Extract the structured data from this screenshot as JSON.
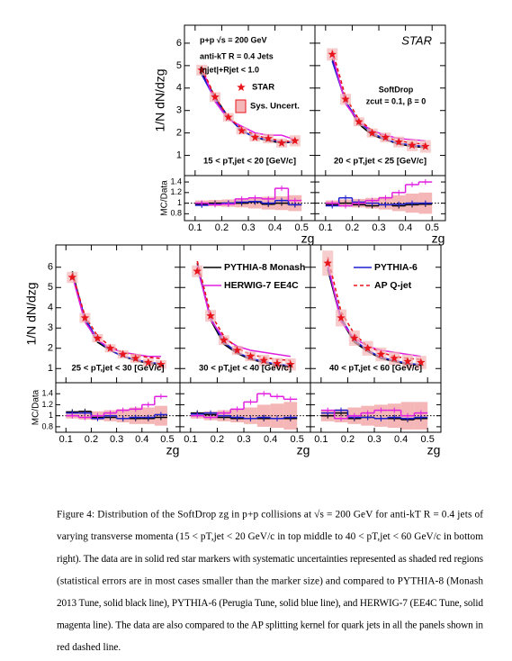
{
  "chart_data": [
    {
      "type": "line",
      "ylabel": "1/N dN/dzg",
      "xlabel": "zg",
      "pt_label": "15 < pT,jet < 20 [GeV/c]",
      "annotations": [
        "p+p  √s = 200 GeV",
        "anti-kT R = 0.4 Jets",
        "|ηjet|+Rjet < 1.0"
      ],
      "x": [
        0.125,
        0.175,
        0.225,
        0.275,
        0.325,
        0.375,
        0.425,
        0.475
      ],
      "xlim": [
        0.06,
        0.55
      ],
      "xticks": [
        0.1,
        0.2,
        0.3,
        0.4,
        0.5
      ],
      "ylim": [
        0.1,
        6.8
      ],
      "yticks": [
        1,
        2,
        3,
        4,
        5,
        6
      ],
      "series": [
        {
          "name": "STAR",
          "style": "markers",
          "color": "#e8141c",
          "values": [
            4.8,
            3.6,
            2.7,
            2.1,
            1.8,
            1.75,
            1.55,
            1.65
          ]
        },
        {
          "style": "line",
          "color": "#000000",
          "values": [
            4.7,
            3.6,
            2.7,
            2.1,
            1.8,
            1.65,
            1.55,
            1.6
          ]
        },
        {
          "style": "line",
          "color": "#1f1fd0",
          "values": [
            4.6,
            3.5,
            2.7,
            2.1,
            1.8,
            1.7,
            1.6,
            1.6
          ]
        },
        {
          "style": "line",
          "color": "#e020e0",
          "values": [
            4.9,
            3.4,
            2.6,
            2.3,
            2.0,
            1.9,
            1.9,
            1.7
          ]
        },
        {
          "style": "dashed",
          "color": "#e8141c",
          "values": [
            4.9,
            3.6,
            2.7,
            2.2,
            1.9,
            1.75,
            1.65,
            1.6
          ]
        }
      ],
      "ratio": {
        "ylabel": "MC/Data",
        "ylim": [
          0.67,
          1.52
        ],
        "yticks": [
          0.8,
          1,
          1.2,
          1.4
        ],
        "ref_line": 1,
        "bins": [
          0.1,
          0.15,
          0.2,
          0.25,
          0.3,
          0.35,
          0.4,
          0.45,
          0.5
        ],
        "series": [
          {
            "name": "Sys. Uncert.",
            "style": "band",
            "color": "#f4b6b6",
            "values": [
              0.05,
              0.06,
              0.07,
              0.08,
              0.1,
              0.12,
              0.13,
              0.15
            ]
          },
          {
            "style": "step",
            "color": "#000000",
            "values": [
              0.98,
              1.0,
              1.0,
              1.0,
              1.02,
              0.98,
              1.0,
              0.97
            ]
          },
          {
            "style": "step",
            "color": "#1f1fd0",
            "values": [
              0.96,
              0.98,
              1.0,
              1.02,
              1.03,
              1.0,
              1.05,
              0.97
            ]
          },
          {
            "style": "step",
            "color": "#e020e0",
            "values": [
              1.0,
              0.97,
              0.98,
              1.08,
              1.1,
              1.08,
              1.28,
              1.05
            ]
          }
        ]
      }
    },
    {
      "type": "line",
      "xlabel": "zg",
      "pt_label": "20 < pT,jet < 25 [GeV/c]",
      "annotations": [
        "STAR",
        "SoftDrop",
        "zcut = 0.1, β = 0"
      ],
      "x": [
        0.125,
        0.175,
        0.225,
        0.275,
        0.325,
        0.375,
        0.425,
        0.475
      ],
      "xlim": [
        0.06,
        0.55
      ],
      "xticks": [
        0.1,
        0.2,
        0.3,
        0.4,
        0.5
      ],
      "ylim": [
        0.1,
        6.8
      ],
      "yticks": [
        1,
        2,
        3,
        4,
        5,
        6
      ],
      "series": [
        {
          "style": "markers",
          "color": "#e8141c",
          "values": [
            5.5,
            3.5,
            2.5,
            2.0,
            1.8,
            1.6,
            1.45,
            1.4
          ]
        },
        {
          "style": "line",
          "color": "#000000",
          "values": [
            5.3,
            3.4,
            2.4,
            1.9,
            1.7,
            1.5,
            1.4,
            1.35
          ]
        },
        {
          "style": "line",
          "color": "#1f1fd0",
          "values": [
            5.2,
            3.4,
            2.5,
            2.0,
            1.7,
            1.55,
            1.45,
            1.4
          ]
        },
        {
          "style": "line",
          "color": "#e020e0",
          "values": [
            5.5,
            3.3,
            2.5,
            2.1,
            1.9,
            1.75,
            1.7,
            1.65
          ]
        },
        {
          "style": "dashed",
          "color": "#e8141c",
          "values": [
            5.7,
            3.6,
            2.6,
            2.1,
            1.8,
            1.65,
            1.55,
            1.5
          ]
        }
      ],
      "ratio": {
        "ylim": [
          0.67,
          1.52
        ],
        "yticks": [
          0.8,
          1,
          1.2,
          1.4
        ],
        "ref_line": 1,
        "bins": [
          0.1,
          0.15,
          0.2,
          0.25,
          0.3,
          0.35,
          0.4,
          0.45,
          0.5
        ],
        "series": [
          {
            "style": "band",
            "color": "#f4b6b6",
            "values": [
              0.05,
              0.07,
              0.08,
              0.1,
              0.12,
              0.15,
              0.18,
              0.2
            ]
          },
          {
            "style": "step",
            "color": "#000000",
            "values": [
              0.97,
              1.0,
              0.97,
              0.95,
              0.97,
              0.95,
              0.97,
              0.98
            ]
          },
          {
            "style": "step",
            "color": "#1f1fd0",
            "values": [
              0.95,
              1.1,
              1.02,
              1.0,
              0.97,
              0.98,
              1.0,
              1.0
            ]
          },
          {
            "style": "step",
            "color": "#e020e0",
            "values": [
              1.0,
              0.95,
              1.0,
              1.05,
              1.1,
              1.2,
              1.35,
              1.4
            ]
          }
        ]
      }
    },
    {
      "type": "line",
      "ylabel": "1/N dN/dzg",
      "xlabel": "zg",
      "pt_label": "25 < pT,jet < 30 [GeV/c]",
      "annotations": [],
      "x": [
        0.125,
        0.175,
        0.225,
        0.275,
        0.325,
        0.375,
        0.425,
        0.475
      ],
      "xlim": [
        0.06,
        0.55
      ],
      "xticks": [
        0.1,
        0.2,
        0.3,
        0.4,
        0.5
      ],
      "ylim": [
        0.3,
        7.1
      ],
      "yticks": [
        1,
        2,
        3,
        4,
        5,
        6
      ],
      "series": [
        {
          "style": "markers",
          "color": "#e8141c",
          "values": [
            5.5,
            3.5,
            2.5,
            2.0,
            1.7,
            1.5,
            1.3,
            1.2
          ]
        },
        {
          "style": "line",
          "color": "#000000",
          "values": [
            5.8,
            3.4,
            2.3,
            1.9,
            1.6,
            1.4,
            1.25,
            1.2
          ]
        },
        {
          "style": "line",
          "color": "#1f1fd0",
          "values": [
            5.6,
            3.5,
            2.4,
            1.9,
            1.6,
            1.45,
            1.3,
            1.25
          ]
        },
        {
          "style": "line",
          "color": "#e020e0",
          "values": [
            5.6,
            3.3,
            2.4,
            2.0,
            1.8,
            1.7,
            1.6,
            1.6
          ]
        },
        {
          "style": "dashed",
          "color": "#e8141c",
          "values": [
            5.7,
            3.6,
            2.6,
            2.1,
            1.8,
            1.65,
            1.55,
            1.5
          ]
        }
      ],
      "ratio": {
        "ylabel": "MC/Data",
        "ylim": [
          0.7,
          1.6
        ],
        "yticks": [
          0.8,
          1,
          1.2,
          1.4
        ],
        "ref_line": 1,
        "bins": [
          0.1,
          0.15,
          0.2,
          0.25,
          0.3,
          0.35,
          0.4,
          0.45,
          0.5
        ],
        "series": [
          {
            "style": "band",
            "color": "#f4b6b6",
            "values": [
              0.05,
              0.07,
              0.08,
              0.1,
              0.12,
              0.15,
              0.15,
              0.18
            ]
          },
          {
            "style": "step",
            "color": "#000000",
            "values": [
              1.07,
              1.08,
              0.97,
              0.97,
              0.95,
              0.95,
              0.95,
              0.97
            ]
          },
          {
            "style": "step",
            "color": "#1f1fd0",
            "values": [
              1.05,
              1.05,
              0.95,
              1.0,
              0.95,
              0.97,
              0.97,
              1.02
            ]
          },
          {
            "style": "step",
            "color": "#e020e0",
            "values": [
              1.0,
              0.97,
              1.0,
              1.05,
              1.1,
              1.12,
              1.2,
              1.35
            ]
          }
        ]
      }
    },
    {
      "type": "line",
      "xlabel": "zg",
      "pt_label": "30 < pT,jet < 40 [GeV/c]",
      "annotations": [],
      "x": [
        0.125,
        0.175,
        0.225,
        0.275,
        0.325,
        0.375,
        0.425,
        0.475
      ],
      "xlim": [
        0.06,
        0.55
      ],
      "xticks": [
        0.1,
        0.2,
        0.3,
        0.4,
        0.5
      ],
      "ylim": [
        0.3,
        7.1
      ],
      "yticks": [
        1,
        2,
        3,
        4,
        5,
        6
      ],
      "series": [
        {
          "style": "markers",
          "color": "#e8141c",
          "values": [
            5.8,
            3.6,
            2.4,
            1.9,
            1.6,
            1.4,
            1.25,
            1.2
          ]
        },
        {
          "name": "PYTHIA-8 Monash",
          "style": "line",
          "color": "#000000",
          "values": [
            6.2,
            3.4,
            2.2,
            1.75,
            1.45,
            1.3,
            1.15,
            1.1
          ]
        },
        {
          "style": "line",
          "color": "#1f1fd0",
          "values": [
            6.0,
            3.5,
            2.3,
            1.8,
            1.5,
            1.35,
            1.2,
            1.15
          ]
        },
        {
          "name": "HERWIG-7 EE4C",
          "style": "line",
          "color": "#e020e0",
          "values": [
            6.1,
            3.4,
            2.5,
            2.1,
            1.9,
            1.8,
            1.7,
            1.6
          ]
        },
        {
          "style": "dashed",
          "color": "#e8141c",
          "values": [
            6.3,
            3.7,
            2.6,
            2.0,
            1.7,
            1.55,
            1.45,
            1.4
          ]
        }
      ],
      "ratio": {
        "ylim": [
          0.7,
          1.6
        ],
        "yticks": [
          0.8,
          1,
          1.2,
          1.4
        ],
        "ref_line": 1,
        "bins": [
          0.1,
          0.15,
          0.2,
          0.25,
          0.3,
          0.35,
          0.4,
          0.45,
          0.5
        ],
        "series": [
          {
            "style": "band",
            "color": "#f4b6b6",
            "values": [
              0.05,
              0.08,
              0.1,
              0.12,
              0.15,
              0.2,
              0.22,
              0.25
            ]
          },
          {
            "style": "step",
            "color": "#000000",
            "values": [
              1.05,
              1.02,
              0.97,
              0.95,
              0.95,
              0.95,
              0.95,
              0.95
            ]
          },
          {
            "style": "step",
            "color": "#1f1fd0",
            "values": [
              1.03,
              1.05,
              1.0,
              0.97,
              0.95,
              0.97,
              0.95,
              0.97
            ]
          },
          {
            "style": "step",
            "color": "#e020e0",
            "values": [
              1.0,
              0.97,
              1.05,
              1.12,
              1.25,
              1.4,
              1.35,
              1.3
            ]
          }
        ]
      }
    },
    {
      "type": "line",
      "xlabel": "zg",
      "pt_label": "40 < pT,jet < 60 [GeV/c]",
      "annotations": [],
      "x": [
        0.125,
        0.175,
        0.225,
        0.275,
        0.325,
        0.375,
        0.425,
        0.475
      ],
      "xlim": [
        0.06,
        0.55
      ],
      "xticks": [
        0.1,
        0.2,
        0.3,
        0.4,
        0.5
      ],
      "ylim": [
        0.3,
        7.1
      ],
      "yticks": [
        1,
        2,
        3,
        4,
        5,
        6
      ],
      "series": [
        {
          "style": "markers",
          "color": "#e8141c",
          "values": [
            6.2,
            3.5,
            2.5,
            2.0,
            1.7,
            1.5,
            1.35,
            1.3
          ]
        },
        {
          "style": "line",
          "color": "#000000",
          "values": [
            5.9,
            3.4,
            2.3,
            1.85,
            1.5,
            1.35,
            1.2,
            1.15
          ]
        },
        {
          "name": "PYTHIA-6",
          "style": "line",
          "color": "#1f1fd0",
          "values": [
            6.0,
            3.5,
            2.4,
            1.9,
            1.55,
            1.4,
            1.25,
            1.2
          ]
        },
        {
          "style": "line",
          "color": "#e020e0",
          "values": [
            6.2,
            3.3,
            2.5,
            2.1,
            1.9,
            1.8,
            1.7,
            1.6
          ]
        },
        {
          "name": "AP Q-jet",
          "style": "dashed",
          "color": "#e8141c",
          "values": [
            6.5,
            3.8,
            2.7,
            2.1,
            1.8,
            1.6,
            1.5,
            1.45
          ]
        }
      ],
      "ratio": {
        "ylim": [
          0.7,
          1.6
        ],
        "yticks": [
          0.8,
          1,
          1.2,
          1.4
        ],
        "ref_line": 1,
        "bins": [
          0.1,
          0.15,
          0.2,
          0.25,
          0.3,
          0.35,
          0.4,
          0.45,
          0.5
        ],
        "series": [
          {
            "style": "band",
            "color": "#f4b6b6",
            "values": [
              0.1,
              0.12,
              0.15,
              0.18,
              0.2,
              0.22,
              0.25,
              0.25
            ]
          },
          {
            "style": "step",
            "color": "#000000",
            "values": [
              1.0,
              1.05,
              0.95,
              0.97,
              0.95,
              0.95,
              0.93,
              0.95
            ]
          },
          {
            "style": "step",
            "color": "#1f1fd0",
            "values": [
              1.05,
              1.1,
              0.97,
              0.97,
              0.95,
              0.97,
              0.95,
              0.97
            ]
          },
          {
            "style": "step",
            "color": "#e020e0",
            "values": [
              1.1,
              0.95,
              1.0,
              1.05,
              1.1,
              1.1,
              1.0,
              1.05
            ]
          }
        ]
      }
    }
  ],
  "caption": [
    "Figure 4: Distribution of the SoftDrop zg in p+p collisions at √s = 200 GeV for anti-kT R = 0.4 jets of",
    "varying transverse momenta (15 < pT,jet < 20 GeV/c in top middle to 40 < pT,jet < 60 GeV/c in bottom",
    "right). The data are in solid red star markers with systematic uncertainties represented as shaded red regions",
    "(statistical errors are in most cases smaller than the marker size) and compared to PYTHIA-8 (Monash",
    "2013 Tune, solid black line), PYTHIA-6 (Perugia Tune, solid blue line), and HERWIG-7 (EE4C Tune, solid",
    "magenta line). The data are also compared to the AP splitting kernel for quark jets in all the panels shown in",
    "red dashed line."
  ]
}
